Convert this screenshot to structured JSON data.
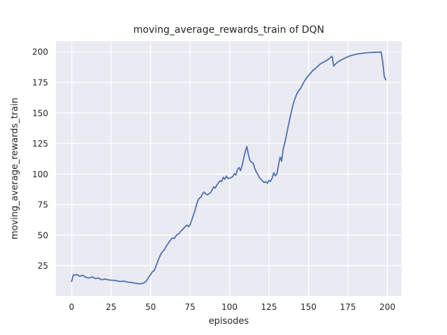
{
  "figure": {
    "title": "moving_average_rewards_train of DQN",
    "xlabel": "episodes",
    "ylabel": "moving_average_rewards_train"
  },
  "chart_data": {
    "type": "line",
    "title": "moving_average_rewards_train of DQN",
    "xlabel": "episodes",
    "ylabel": "moving_average_rewards_train",
    "legend": null,
    "grid": true,
    "style": "seaborn-darkgrid",
    "n_points": 200,
    "x_range": [
      0,
      199
    ],
    "xticks": [
      0,
      25,
      50,
      75,
      100,
      125,
      150,
      175,
      200
    ],
    "yticks": [
      25,
      50,
      75,
      100,
      125,
      150,
      175,
      200
    ],
    "xlim": [
      -10,
      209
    ],
    "ylim": [
      0.2,
      208.7
    ],
    "colors": {
      "line": "#4c72b0",
      "panel_background": "#eaeaf2",
      "grid": "#ffffff",
      "figure_background": "#ffffff",
      "text": "#262626"
    },
    "series": [
      {
        "name": "moving_average_rewards_train",
        "y": [
          12,
          17.3,
          17,
          17.8,
          17.2,
          16.3,
          16.6,
          17,
          16.2,
          15.5,
          15.1,
          14.8,
          15.3,
          15.9,
          15.1,
          14.4,
          14.6,
          14.8,
          14.1,
          13.5,
          13.7,
          14,
          13.8,
          13.4,
          13.2,
          13.1,
          13,
          12.9,
          12.8,
          12.5,
          12.1,
          12,
          12.2,
          12.4,
          12,
          11.6,
          11.4,
          11.3,
          11.2,
          10.9,
          10.7,
          10.5,
          10.3,
          10.1,
          10.2,
          10.4,
          11,
          12,
          13.8,
          16,
          17.5,
          19.8,
          20.6,
          23,
          26.5,
          30,
          33,
          35.5,
          37,
          38.5,
          41,
          42.8,
          44.8,
          46.5,
          47.8,
          47.2,
          49.3,
          50.5,
          51.2,
          53,
          54.2,
          55.5,
          57,
          58.2,
          56.8,
          58.5,
          62,
          66,
          69.5,
          74.5,
          78.5,
          80.2,
          81.2,
          83.8,
          85.2,
          83.5,
          83,
          83.8,
          84.8,
          87,
          89.5,
          88.5,
          91,
          92.8,
          94.5,
          93.8,
          97.3,
          95.6,
          98.2,
          96.3,
          96.6,
          97,
          97.8,
          100.2,
          99.2,
          103.5,
          105.3,
          102.8,
          107,
          113,
          118.5,
          122.5,
          115.5,
          111,
          109.5,
          108.8,
          104.5,
          101.5,
          99.5,
          96.7,
          95.5,
          94.2,
          93,
          93.7,
          92.3,
          94.8,
          94,
          96.7,
          101,
          98.5,
          100,
          107,
          113.8,
          110.5,
          120.5,
          125.5,
          131.5,
          138,
          144,
          150,
          155.5,
          160,
          163.5,
          166.5,
          168.5,
          170,
          172.5,
          175,
          177,
          179,
          180.5,
          182,
          183.5,
          185,
          186,
          187,
          188.3,
          189.5,
          190.5,
          191.2,
          191.8,
          192.6,
          193.4,
          194.3,
          195.5,
          196.3,
          188.3,
          189.8,
          191,
          192,
          192.8,
          193.5,
          194.2,
          194.8,
          195.4,
          196,
          196.5,
          196.9,
          197.3,
          197.6,
          197.9,
          198.2,
          198.4,
          198.6,
          198.8,
          199,
          199.1,
          199.2,
          199.3,
          199.4,
          199.5,
          199.55,
          199.6,
          199.65,
          199.7,
          199.75,
          199.8,
          192,
          180,
          177
        ]
      }
    ]
  }
}
